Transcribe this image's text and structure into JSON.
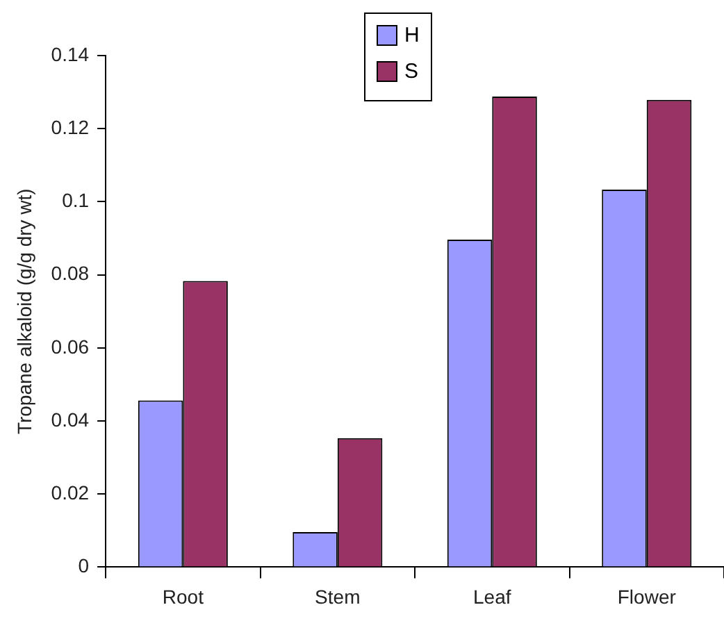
{
  "chart_data": {
    "type": "bar",
    "ylabel": "Tropane alkaloid (g/g dry wt)",
    "categories": [
      "Root",
      "Stem",
      "Leaf",
      "Flower"
    ],
    "series": [
      {
        "name": "H",
        "color": "#9999ff",
        "values": [
          0.0456,
          0.0096,
          0.0896,
          0.1033
        ]
      },
      {
        "name": "S",
        "color": "#993366",
        "values": [
          0.0783,
          0.0353,
          0.1288,
          0.1279
        ]
      }
    ],
    "ylim": [
      0,
      0.14
    ],
    "yticks": [
      0,
      0.02,
      0.04,
      0.06,
      0.08,
      0.1,
      0.12,
      0.14
    ],
    "grid": false,
    "legend": "top"
  }
}
